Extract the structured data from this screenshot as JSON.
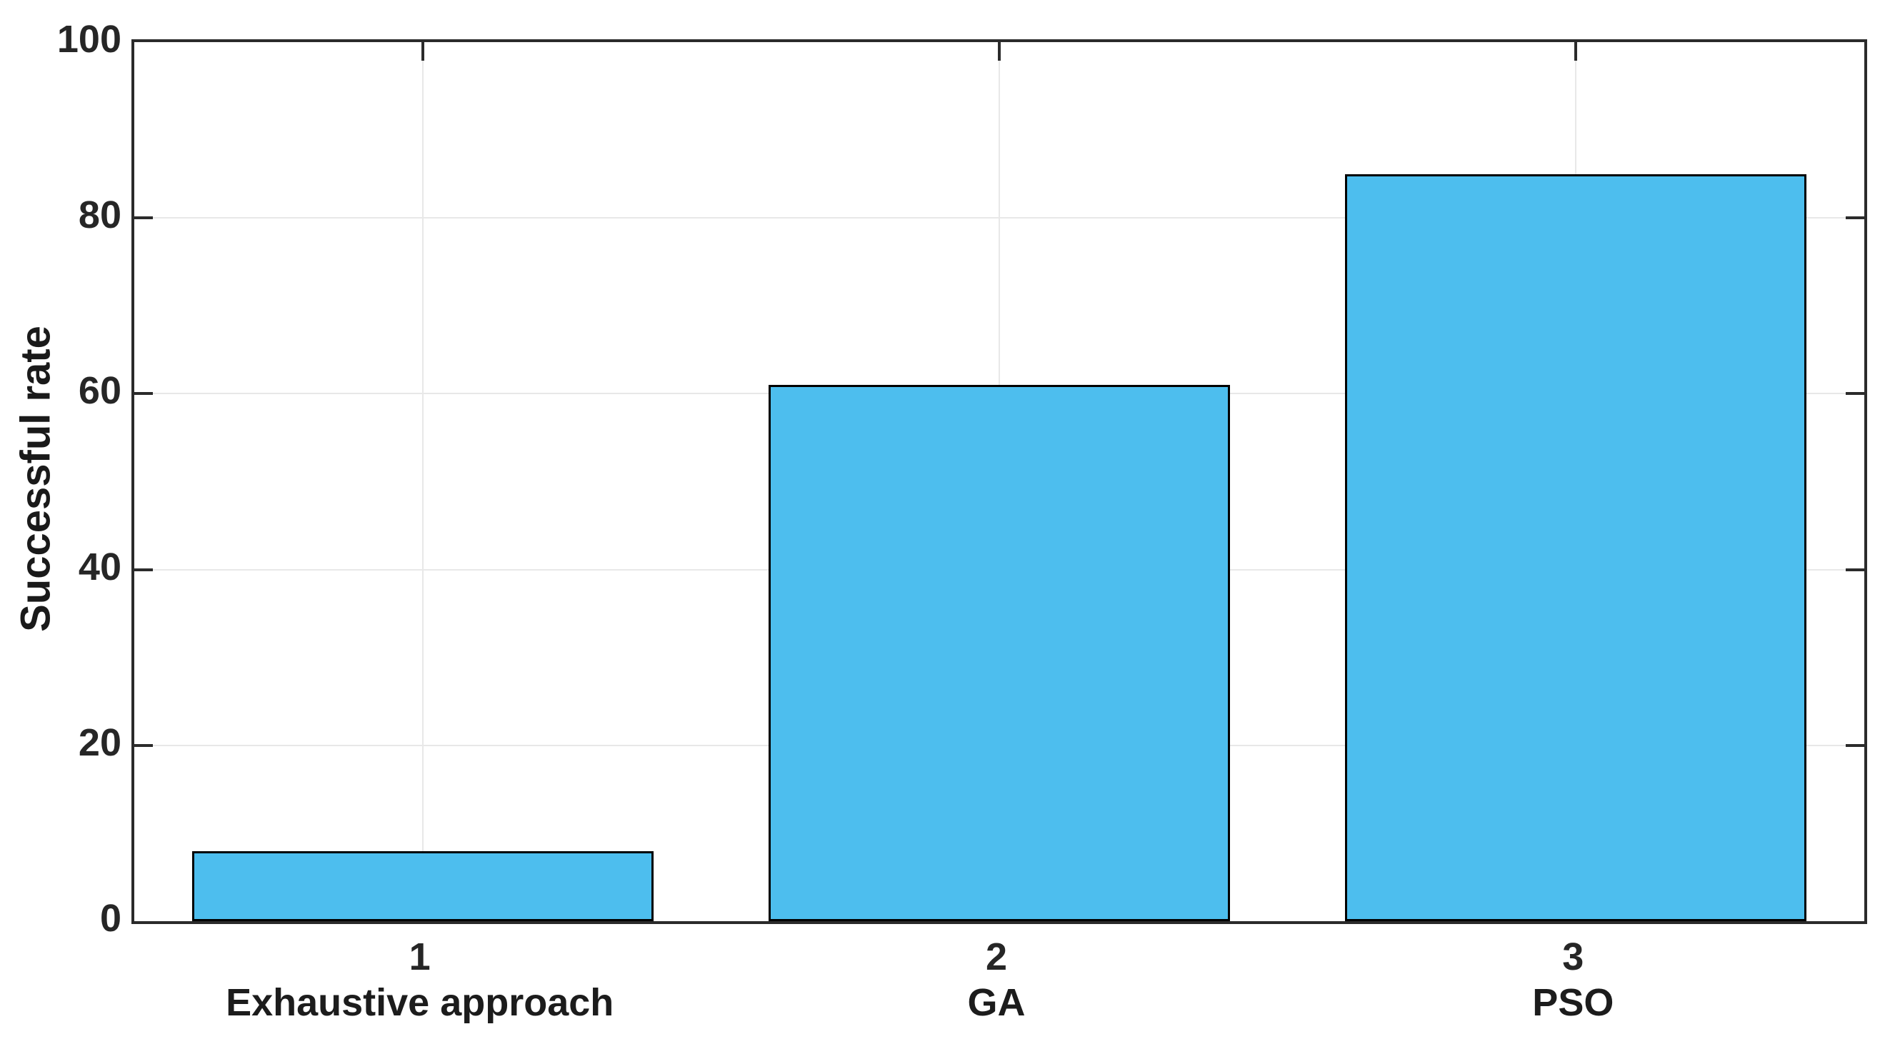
{
  "figure": {
    "background": "#FFFFFF"
  },
  "chart_data": {
    "type": "bar",
    "title": "",
    "ylabel": "Successful rate",
    "xlabel": "",
    "categories": [
      {
        "tick": "1",
        "label": "Exhaustive approach"
      },
      {
        "tick": "2",
        "label": "GA"
      },
      {
        "tick": "3",
        "label": "PSO"
      }
    ],
    "values": [
      8,
      61,
      85
    ],
    "ylim": [
      0,
      100
    ],
    "yticks": [
      0,
      20,
      40,
      60,
      80,
      100
    ],
    "grid": "on",
    "legend": "none",
    "bar_width_fraction": 0.8,
    "colors": {
      "bar_fill": "#4DBEEE",
      "bar_edge": "#000000",
      "axis": "#2B2B2B",
      "grid": "#E8E8E8",
      "tick_label": "#262626",
      "category_label": "#1C1C1C"
    }
  }
}
